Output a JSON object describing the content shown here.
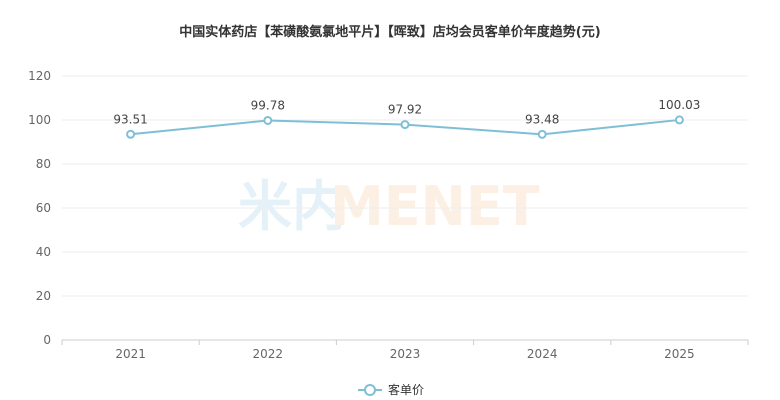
{
  "chart_data": {
    "type": "line",
    "title": "中国实体药店【苯磺酸氨氯地平片】【晖致】店均会员客单价年度趋势(元)",
    "categories": [
      "2021",
      "2022",
      "2023",
      "2024",
      "2025"
    ],
    "series": [
      {
        "name": "客单价",
        "values": [
          93.51,
          99.78,
          97.92,
          93.48,
          100.03
        ],
        "color": "#7fbfd6"
      }
    ],
    "ylim": [
      0,
      120
    ],
    "yticks": [
      "0",
      "20",
      "40",
      "60",
      "80",
      "100",
      "120"
    ],
    "data_labels": [
      "93.51",
      "99.78",
      "97.92",
      "93.48",
      "100.03"
    ],
    "grid": true,
    "legend_position": "bottom-center"
  },
  "watermark": {
    "logo": "米内MENET",
    "mark_color": "#cfe6f3",
    "text_color": "#fbe2cf"
  }
}
